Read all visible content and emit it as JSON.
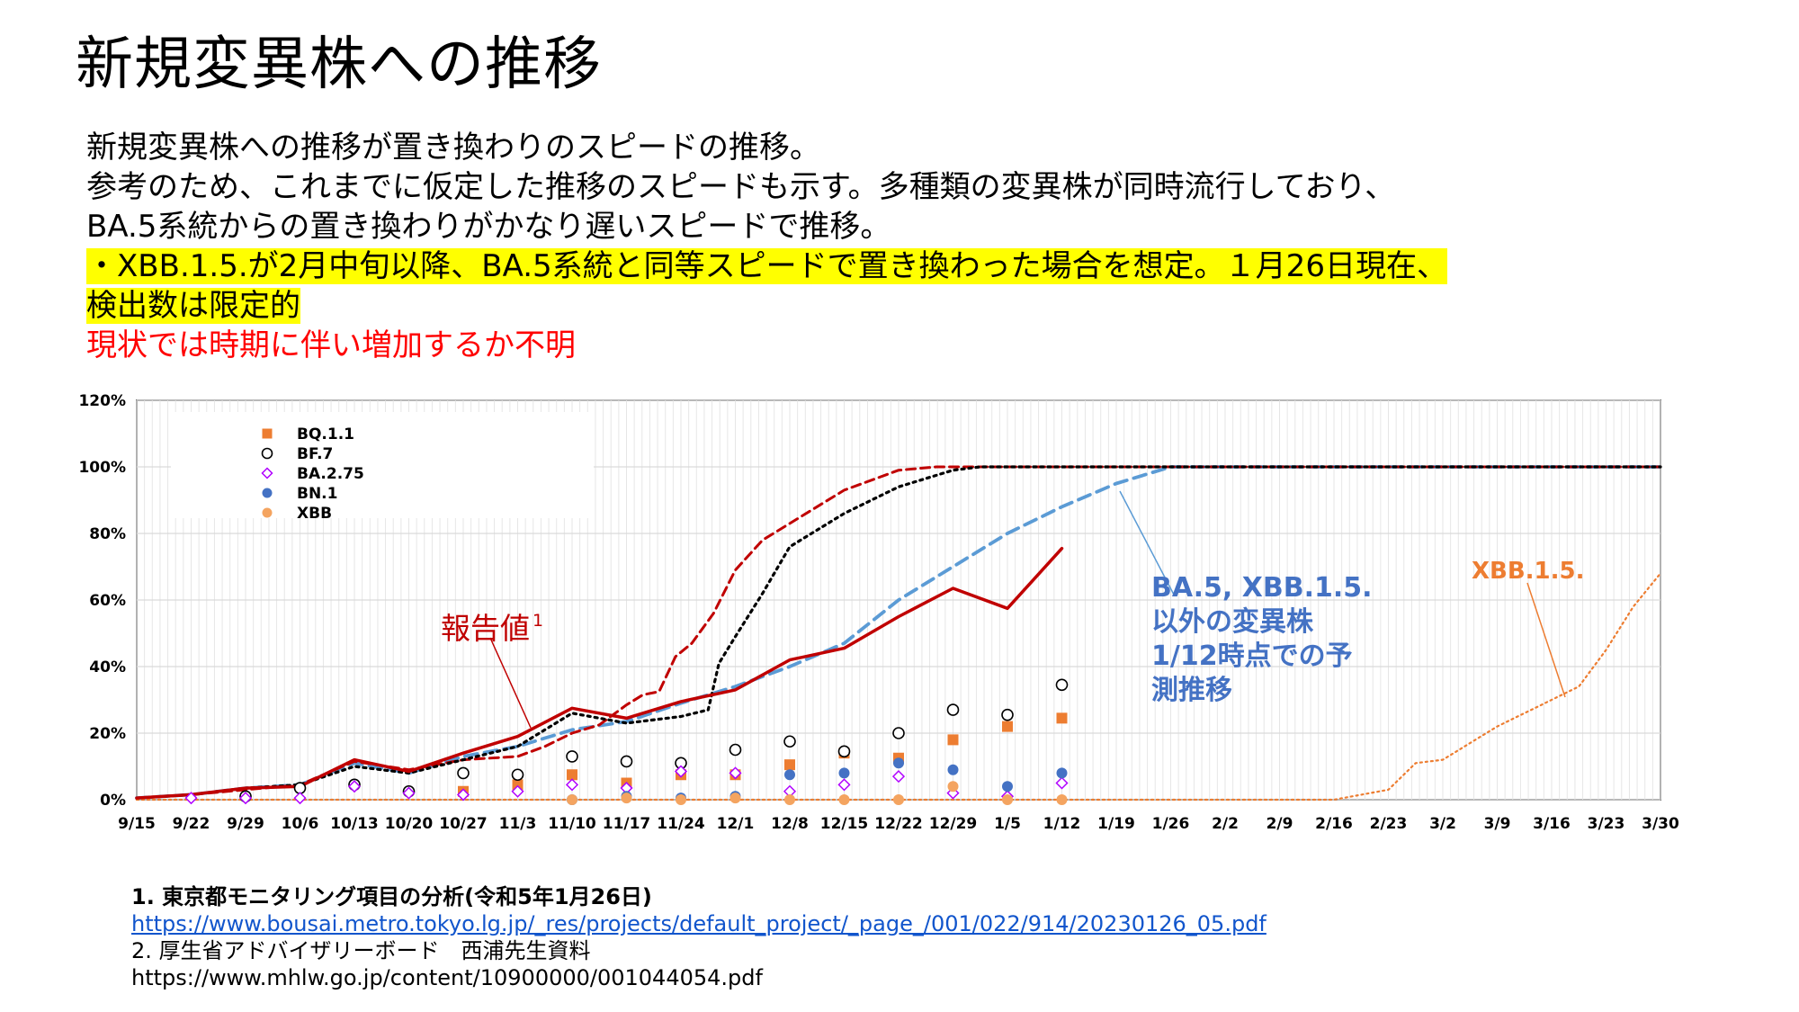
{
  "title": "新規変異株への推移",
  "description": {
    "line1": "新規変異株への推移が置き換わりのスピードの推移。",
    "line2": "参考のため、これまでに仮定した推移のスピードも示す。多種類の変異株が同時流行しており、",
    "line3": "BA.5系統からの置き換わりがかなり遅いスピードで推移。",
    "highlight1": "・XBB.1.5.が2月中旬以降、BA.5系統と同等スピードで置き換わった場合を想定。１月26日現在、",
    "highlight2": "検出数は限定的",
    "red_note": "現状では時期に伴い増加するか不明"
  },
  "references": {
    "ref1_title": "1.  東京都モニタリング項目の分析(令和5年1月26日)",
    "ref1_url": "https://www.bousai.metro.tokyo.lg.jp/_res/projects/default_project/_page_/001/022/914/20230126_05.pdf",
    "ref2_title": "2. 厚生省アドバイザリーボード　西浦先生資料",
    "ref2_url": "https://www.mhlw.go.jp/content/10900000/001044054.pdf"
  },
  "chart_data": {
    "type": "line",
    "x_ticks": [
      "9/15",
      "9/22",
      "9/29",
      "10/6",
      "10/13",
      "10/20",
      "10/27",
      "11/3",
      "11/10",
      "11/17",
      "11/24",
      "12/1",
      "12/8",
      "12/15",
      "12/22",
      "12/29",
      "1/5",
      "1/12",
      "1/19",
      "1/26",
      "2/2",
      "2/9",
      "2/16",
      "2/23",
      "3/2",
      "3/9",
      "3/16",
      "3/23",
      "3/30"
    ],
    "y_ticks": [
      "0%",
      "20%",
      "40%",
      "60%",
      "80%",
      "100%",
      "120%"
    ],
    "ylim": [
      0,
      120
    ],
    "x_range_weeks": [
      0,
      28
    ],
    "grid": true,
    "annotations": {
      "reported": "報告値",
      "reported_sup": "1",
      "forecast": [
        "BA.5, XBB.1.5.",
        "以外の変異株",
        "1/12時点での予",
        "測推移"
      ],
      "xbb15": "XBB.1.5."
    },
    "colors": {
      "reported": "#c00000",
      "forecast": "#5b9bd5",
      "red_dash": "#c00000",
      "black_dot": "#000000",
      "xbb15": "#ed7d31",
      "bq11": "#ed7d31",
      "bf7": "#000000",
      "ba275": "#b000ff",
      "bn1": "#4472c4",
      "xbb": "#f4a460",
      "forecast_label": "#4472c4",
      "xbb15_label": "#ed7d31"
    },
    "series": [
      {
        "name": "報告値",
        "style": "solid",
        "x": [
          0,
          1,
          2,
          3,
          4,
          5,
          6,
          7,
          8,
          9,
          10,
          11,
          12,
          13,
          14,
          15,
          16,
          17
        ],
        "y": [
          0.5,
          1.5,
          3.5,
          4,
          12,
          8.5,
          14,
          19,
          27.5,
          24.5,
          29.5,
          33,
          42,
          45.5,
          55,
          63.5,
          57.5,
          75.5
        ]
      },
      {
        "style": "dash",
        "x": [
          0,
          1,
          2,
          3,
          4,
          5,
          6,
          7,
          7.5,
          8,
          8.5,
          9,
          9.3,
          9.6,
          9.9,
          10.2,
          10.6,
          11,
          11.5,
          12,
          13,
          14,
          14.7,
          16,
          28
        ],
        "y": [
          0.5,
          1.5,
          3,
          4.5,
          11.5,
          9,
          12,
          13,
          16,
          20,
          22.5,
          28.5,
          31.5,
          32.5,
          43,
          47,
          56,
          69,
          78,
          83,
          93,
          99,
          100,
          100,
          100
        ]
      },
      {
        "style": "dot",
        "x": [
          0,
          1,
          2,
          3,
          4,
          5,
          6,
          7,
          8,
          9,
          10,
          10.5,
          10.7,
          11,
          11.5,
          12,
          13,
          14,
          15,
          15.5,
          28
        ],
        "y": [
          0.5,
          1.5,
          3.5,
          4.5,
          10,
          8,
          12,
          16,
          26,
          23,
          25,
          27,
          41,
          49,
          62,
          76,
          86,
          94,
          99,
          100,
          100
        ]
      },
      {
        "style": "dash",
        "x": [
          0,
          1,
          2,
          3,
          4,
          5,
          6,
          7,
          8,
          9,
          10,
          11,
          12,
          13,
          14,
          15,
          16,
          17,
          18,
          19,
          20,
          28
        ],
        "y": [
          0.5,
          1.5,
          3.5,
          4.5,
          11,
          8,
          13,
          16,
          21,
          23.5,
          29,
          34,
          40,
          47,
          60,
          70,
          80,
          88,
          95,
          100,
          100,
          100
        ]
      },
      {
        "name": "XBB.1.5.",
        "style": "dot",
        "x": [
          0,
          22,
          23,
          23.5,
          24,
          25,
          26,
          26.5,
          27,
          27.5,
          28
        ],
        "y": [
          0,
          0,
          3,
          11,
          12,
          22,
          30,
          34,
          45,
          58,
          68
        ]
      }
    ],
    "scatter": [
      {
        "name": "BQ.1.1",
        "marker": "square",
        "x": [
          6,
          7,
          8,
          9,
          10,
          11,
          12,
          13,
          14,
          15,
          16,
          17
        ],
        "y": [
          2.5,
          4.5,
          7.5,
          5,
          7.5,
          7.5,
          10.5,
          14,
          12.5,
          18,
          22,
          24.5
        ]
      },
      {
        "name": "BF.7",
        "marker": "circle-open",
        "x": [
          2,
          3,
          4,
          5,
          6,
          7,
          8,
          9,
          10,
          11,
          12,
          13,
          14,
          15,
          16,
          17
        ],
        "y": [
          1,
          3.5,
          4.5,
          2.5,
          8,
          7.5,
          13,
          11.5,
          11,
          15,
          17.5,
          14.5,
          20,
          27,
          25.5,
          34.5
        ]
      },
      {
        "name": "BA.2.75",
        "marker": "diamond-open",
        "x": [
          1,
          2,
          3,
          4,
          5,
          6,
          7,
          8,
          9,
          10,
          11,
          12,
          13,
          14,
          15,
          16,
          17
        ],
        "y": [
          0.5,
          0.5,
          0.5,
          4,
          2,
          1.5,
          2.5,
          4.5,
          3.5,
          8.5,
          8,
          2.5,
          4.5,
          7,
          2,
          1,
          5
        ]
      },
      {
        "name": "BN.1",
        "marker": "circle",
        "x": [
          8,
          9,
          10,
          11,
          12,
          13,
          14,
          15,
          16,
          17
        ],
        "y": [
          0,
          1,
          0.5,
          1,
          7.5,
          8,
          11,
          9,
          4,
          8
        ]
      },
      {
        "name": "XBB",
        "marker": "circle",
        "x": [
          8,
          9,
          10,
          11,
          12,
          13,
          14,
          15,
          16,
          17
        ],
        "y": [
          0,
          0.5,
          0,
          0.5,
          0,
          0,
          0,
          4,
          0,
          0
        ]
      }
    ]
  }
}
